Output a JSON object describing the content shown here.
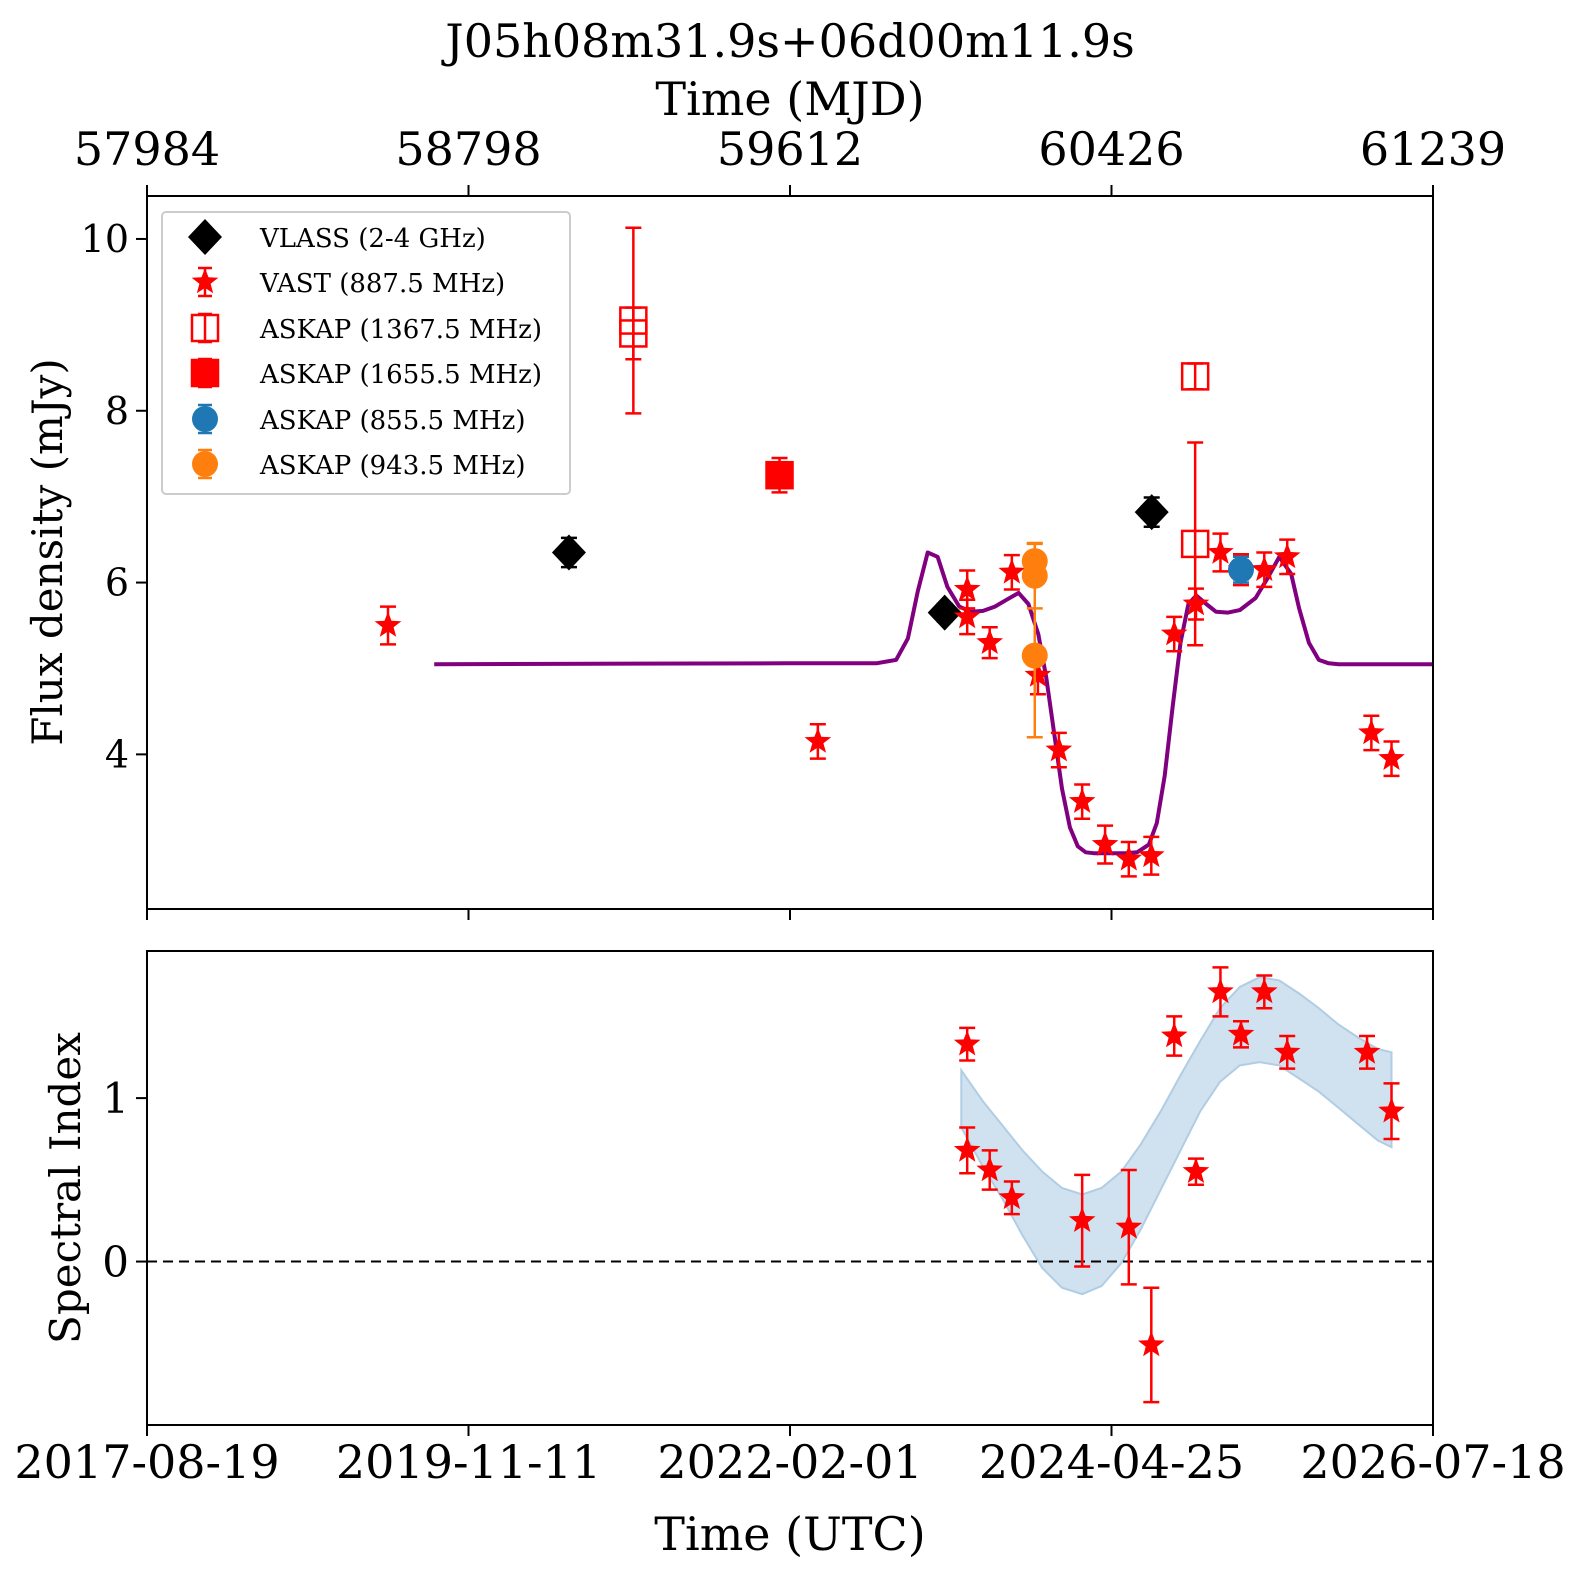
{
  "chart_data": [
    {
      "panel": "flux",
      "type": "scatter",
      "title": "J05h08m31.9s+06d00m11.9s",
      "top_axis": {
        "label": "Time (MJD)",
        "ticks": [
          "57984",
          "58798",
          "59612",
          "60426",
          "61239"
        ]
      },
      "ylabel": "Flux density (mJy)",
      "ylim": [
        2.2,
        10.5
      ],
      "yticks": [
        4,
        6,
        8,
        10
      ],
      "xlim_mjd": [
        57984,
        61239
      ],
      "legend_position": "upper-left",
      "legend": [
        {
          "label": "VLASS (2-4 GHz)",
          "marker": "diamond",
          "color": "#000000",
          "filled": true
        },
        {
          "label": "VAST (887.5 MHz)",
          "marker": "star",
          "color": "#ff0000",
          "filled": true
        },
        {
          "label": "ASKAP (1367.5 MHz)",
          "marker": "square",
          "color": "#ff0000",
          "filled": false
        },
        {
          "label": "ASKAP (1655.5 MHz)",
          "marker": "square",
          "color": "#ff0000",
          "filled": true
        },
        {
          "label": "ASKAP (855.5 MHz)",
          "marker": "circle",
          "color": "#1f77b4",
          "filled": true
        },
        {
          "label": "ASKAP (943.5 MHz)",
          "marker": "circle",
          "color": "#ff7f0e",
          "filled": true
        }
      ],
      "series": [
        {
          "name": "VLASS (2-4 GHz)",
          "x": [
            59052,
            60003,
            60527
          ],
          "y": [
            6.35,
            5.65,
            6.82
          ],
          "err": [
            0.17,
            0.1,
            0.17
          ]
        },
        {
          "name": "VAST (887.5 MHz)",
          "x": [
            58594,
            59682,
            60060,
            60060,
            60117,
            60173,
            60239,
            60292,
            60351,
            60409,
            60469,
            60526,
            60584,
            60639,
            60701,
            60753,
            60812,
            60870,
            61083,
            61134
          ],
          "y": [
            5.5,
            4.15,
            5.92,
            5.6,
            5.3,
            6.12,
            4.92,
            4.05,
            3.45,
            2.95,
            2.78,
            2.82,
            5.4,
            5.75,
            6.35,
            6.15,
            6.15,
            6.3,
            4.25,
            3.95
          ],
          "err": [
            0.22,
            0.2,
            0.22,
            0.2,
            0.18,
            0.2,
            0.22,
            0.2,
            0.2,
            0.22,
            0.2,
            0.22,
            0.2,
            0.18,
            0.22,
            0.18,
            0.2,
            0.2,
            0.2,
            0.2
          ]
        },
        {
          "name": "ASKAP (1367.5 MHz)",
          "x": [
            59215,
            59215,
            60637,
            60637
          ],
          "y": [
            9.05,
            8.9,
            6.45,
            8.4
          ],
          "err": [
            1.08,
            0.3,
            1.18,
            0.15
          ]
        },
        {
          "name": "ASKAP (1655.5 MHz)",
          "x": [
            59585
          ],
          "y": [
            7.25
          ],
          "err": [
            0.2
          ]
        },
        {
          "name": "ASKAP (855.5 MHz)",
          "x": [
            60753
          ],
          "y": [
            6.15
          ],
          "err": [
            0.15
          ]
        },
        {
          "name": "ASKAP (943.5 MHz)",
          "x": [
            60231,
            60231,
            60231
          ],
          "y": [
            6.25,
            6.08,
            5.15
          ],
          "err": [
            0.2,
            0.38,
            0.95
          ]
        },
        {
          "name": "model",
          "color": "#800080",
          "x": [
            58711,
            59600,
            59830,
            59880,
            59910,
            59935,
            59960,
            59985,
            60010,
            60040,
            60070,
            60100,
            60130,
            60160,
            60190,
            60215,
            60240,
            60260,
            60280,
            60300,
            60320,
            60340,
            60360,
            60380,
            60400,
            60430,
            60460,
            60490,
            60520,
            60540,
            60560,
            60580,
            60600,
            60620,
            60640,
            60665,
            60690,
            60720,
            60750,
            60790,
            60820,
            60850,
            60880,
            60900,
            60925,
            60950,
            60975,
            61000,
            61030,
            61060,
            61239
          ],
          "y": [
            5.05,
            5.06,
            5.06,
            5.1,
            5.35,
            5.9,
            6.35,
            6.3,
            5.95,
            5.72,
            5.66,
            5.67,
            5.72,
            5.8,
            5.88,
            5.75,
            5.4,
            4.9,
            4.25,
            3.6,
            3.15,
            2.93,
            2.86,
            2.85,
            2.85,
            2.85,
            2.85,
            2.86,
            2.95,
            3.2,
            3.75,
            4.55,
            5.3,
            5.75,
            5.85,
            5.75,
            5.66,
            5.65,
            5.68,
            5.82,
            6.05,
            6.3,
            6.1,
            5.7,
            5.3,
            5.1,
            5.06,
            5.05,
            5.05,
            5.05,
            5.05
          ]
        }
      ]
    },
    {
      "panel": "spectral_index",
      "type": "scatter",
      "xlabel": "Time (UTC)",
      "ylabel": "Spectral Index",
      "ylim": [
        -1.0,
        1.9
      ],
      "yticks": [
        0,
        1
      ],
      "xticks": [
        "2017-08-19",
        "2019-11-11",
        "2022-02-01",
        "2024-04-25",
        "2026-07-18"
      ],
      "reference_line": {
        "y": 0,
        "style": "dashed",
        "color": "#000000"
      },
      "series": [
        {
          "name": "VAST (887.5 MHz)",
          "x": [
            60060,
            60060,
            60117,
            60173,
            60351,
            60469,
            60526,
            60584,
            60639,
            60701,
            60753,
            60812,
            60870,
            61072,
            61134
          ],
          "y": [
            1.33,
            0.68,
            0.56,
            0.39,
            0.25,
            0.21,
            -0.51,
            1.38,
            0.55,
            1.65,
            1.39,
            1.65,
            1.28,
            1.28,
            0.92
          ],
          "err": [
            0.1,
            0.14,
            0.12,
            0.1,
            0.28,
            0.35,
            0.35,
            0.12,
            0.08,
            0.15,
            0.08,
            0.1,
            0.1,
            0.1,
            0.17
          ]
        },
        {
          "name": "model band",
          "color": "#b0cde4",
          "x": [
            60045,
            60100,
            60150,
            60200,
            60250,
            60300,
            60351,
            60400,
            60450,
            60500,
            60550,
            60600,
            60650,
            60700,
            60750,
            60800,
            60850,
            60900,
            60950,
            61000,
            61050,
            61100,
            61134
          ],
          "upper": [
            1.17,
            0.98,
            0.83,
            0.68,
            0.55,
            0.45,
            0.41,
            0.45,
            0.55,
            0.72,
            0.92,
            1.14,
            1.35,
            1.55,
            1.68,
            1.74,
            1.72,
            1.64,
            1.55,
            1.45,
            1.37,
            1.3,
            1.28
          ],
          "lower": [
            0.82,
            0.58,
            0.38,
            0.16,
            -0.04,
            -0.16,
            -0.2,
            -0.15,
            -0.01,
            0.2,
            0.44,
            0.68,
            0.92,
            1.1,
            1.2,
            1.22,
            1.2,
            1.12,
            1.04,
            0.94,
            0.84,
            0.74,
            0.7
          ]
        }
      ]
    }
  ]
}
